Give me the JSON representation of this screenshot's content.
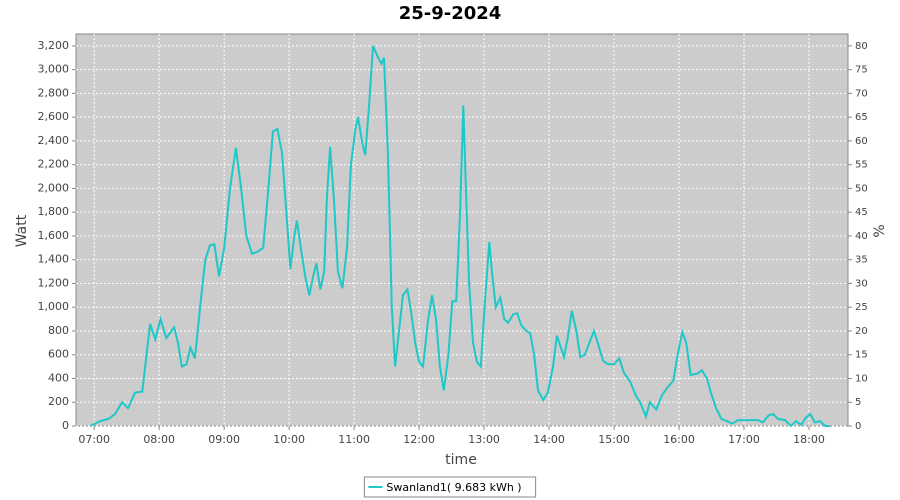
{
  "chart_data": {
    "type": "line",
    "title": "25-9-2024",
    "xlabel": "time",
    "ylabel": "Watt",
    "y2label": "%",
    "x": [
      6.94,
      7.09,
      7.22,
      7.32,
      7.43,
      7.52,
      7.63,
      7.74,
      7.86,
      7.94,
      8.02,
      8.11,
      8.23,
      8.29,
      8.35,
      8.42,
      8.48,
      8.55,
      8.63,
      8.71,
      8.78,
      8.85,
      8.92,
      9.0,
      9.09,
      9.18,
      9.26,
      9.34,
      9.43,
      9.52,
      9.6,
      9.68,
      9.75,
      9.82,
      9.89,
      9.97,
      10.02,
      10.08,
      10.12,
      10.18,
      10.25,
      10.31,
      10.37,
      10.42,
      10.48,
      10.54,
      10.58,
      10.63,
      10.69,
      10.75,
      10.82,
      10.89,
      10.95,
      11.02,
      11.06,
      11.12,
      11.17,
      11.23,
      11.29,
      11.37,
      11.42,
      11.46,
      11.52,
      11.58,
      11.63,
      11.69,
      11.75,
      11.82,
      11.88,
      11.94,
      12.0,
      12.06,
      12.14,
      12.2,
      12.26,
      12.32,
      12.38,
      12.45,
      12.51,
      12.57,
      12.63,
      12.68,
      12.72,
      12.77,
      12.83,
      12.89,
      12.95,
      13.02,
      13.08,
      13.12,
      13.18,
      13.25,
      13.31,
      13.37,
      13.45,
      13.51,
      13.57,
      13.65,
      13.71,
      13.77,
      13.83,
      13.91,
      13.98,
      14.06,
      14.12,
      14.17,
      14.23,
      14.29,
      14.35,
      14.42,
      14.48,
      14.55,
      14.62,
      14.69,
      14.75,
      14.83,
      14.91,
      15.0,
      15.08,
      15.15,
      15.25,
      15.34,
      15.4,
      15.49,
      15.55,
      15.65,
      15.74,
      15.83,
      15.91,
      15.98,
      16.05,
      16.11,
      16.18,
      16.28,
      16.35,
      16.43,
      16.49,
      16.57,
      16.65,
      16.74,
      16.82,
      16.91,
      17.02,
      17.12,
      17.22,
      17.29,
      17.38,
      17.45,
      17.52,
      17.63,
      17.72,
      17.8,
      17.88,
      17.95,
      18.02,
      18.09,
      18.17,
      18.25,
      18.32
    ],
    "series": [
      {
        "name": "Swanland1( 9.683 kWh )",
        "color": "#1ec8c8",
        "values": [
          0,
          40,
          60,
          100,
          200,
          150,
          280,
          290,
          860,
          730,
          900,
          740,
          830,
          700,
          500,
          520,
          660,
          570,
          1000,
          1400,
          1520,
          1530,
          1260,
          1500,
          2000,
          2340,
          2000,
          1600,
          1450,
          1470,
          1500,
          2000,
          2480,
          2500,
          2300,
          1700,
          1320,
          1600,
          1730,
          1500,
          1250,
          1100,
          1260,
          1370,
          1150,
          1300,
          1900,
          2350,
          1900,
          1300,
          1160,
          1500,
          2200,
          2500,
          2600,
          2400,
          2280,
          2700,
          3200,
          3100,
          3050,
          3100,
          2300,
          1000,
          500,
          800,
          1100,
          1150,
          950,
          700,
          540,
          500,
          900,
          1100,
          900,
          500,
          300,
          600,
          1050,
          1050,
          1800,
          2700,
          2000,
          1200,
          700,
          540,
          500,
          1100,
          1550,
          1300,
          1000,
          1080,
          900,
          870,
          940,
          950,
          850,
          800,
          780,
          600,
          300,
          220,
          280,
          500,
          760,
          680,
          580,
          750,
          970,
          800,
          580,
          600,
          700,
          800,
          700,
          550,
          520,
          520,
          570,
          450,
          370,
          250,
          200,
          80,
          200,
          140,
          260,
          330,
          380,
          600,
          790,
          700,
          430,
          440,
          470,
          400,
          280,
          150,
          60,
          40,
          20,
          50,
          50,
          50,
          50,
          30,
          90,
          100,
          60,
          50,
          0,
          40,
          10,
          70,
          100,
          30,
          40,
          0,
          0
        ]
      }
    ],
    "xlim": [
      6.72,
      18.6
    ],
    "xticks": [
      {
        "value": 7,
        "label": "07:00"
      },
      {
        "value": 8,
        "label": "08:00"
      },
      {
        "value": 9,
        "label": "09:00"
      },
      {
        "value": 10,
        "label": "10:00"
      },
      {
        "value": 11,
        "label": "11:00"
      },
      {
        "value": 12,
        "label": "12:00"
      },
      {
        "value": 13,
        "label": "13:00"
      },
      {
        "value": 14,
        "label": "14:00"
      },
      {
        "value": 15,
        "label": "15:00"
      },
      {
        "value": 16,
        "label": "16:00"
      },
      {
        "value": 17,
        "label": "17:00"
      },
      {
        "value": 18,
        "label": "18:00"
      }
    ],
    "ylim": [
      0,
      3300
    ],
    "yticks": [
      0,
      200,
      400,
      600,
      800,
      {
        "value": 1000,
        "label": "1,000"
      },
      {
        "value": 1200,
        "label": "1,200"
      },
      {
        "value": 1400,
        "label": "1,400"
      },
      {
        "value": 1600,
        "label": "1,600"
      },
      {
        "value": 1800,
        "label": "1,800"
      },
      {
        "value": 2000,
        "label": "2,000"
      },
      {
        "value": 2200,
        "label": "2,200"
      },
      {
        "value": 2400,
        "label": "2,400"
      },
      {
        "value": 2600,
        "label": "2,600"
      },
      {
        "value": 2800,
        "label": "2,800"
      },
      {
        "value": 3000,
        "label": "3,000"
      },
      {
        "value": 3200,
        "label": "3,200"
      }
    ],
    "y2lim": [
      0,
      82.5
    ],
    "y2ticks": [
      0,
      5,
      10,
      15,
      20,
      25,
      30,
      35,
      40,
      45,
      50,
      55,
      60,
      65,
      70,
      75,
      80
    ],
    "grid": true,
    "plot_background": "#cccccc",
    "legend": "bottom"
  }
}
